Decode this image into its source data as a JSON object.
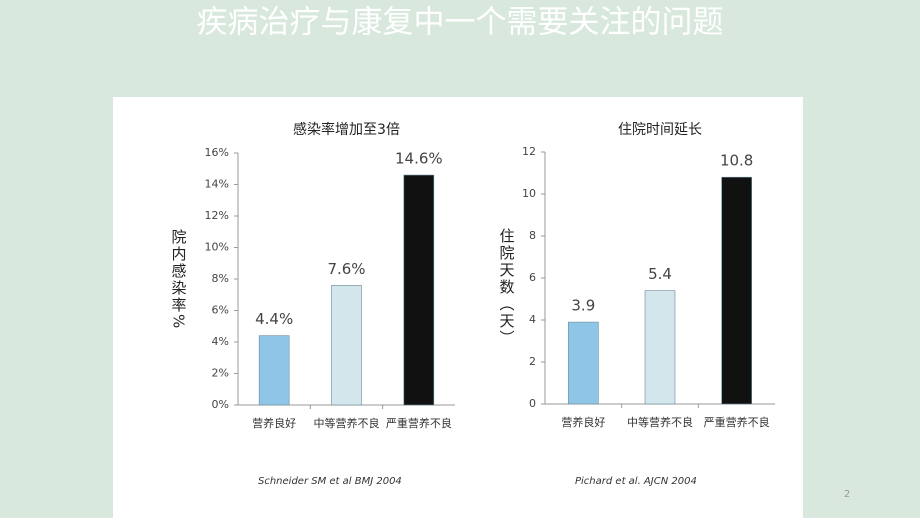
{
  "slide_title": "疾病治疗与康复中一个需要关注的问题",
  "page_number": "2",
  "chart_data": [
    {
      "type": "bar",
      "title": "感染率增加至3倍",
      "y_label": "院内感染率%",
      "categories": [
        "营养良好",
        "中等营养不良",
        "严重营养不良"
      ],
      "values": [
        4.4,
        7.6,
        14.6
      ],
      "value_labels": [
        "4.4%",
        "7.6%",
        "14.6%"
      ],
      "colors": [
        "#8fc6e8",
        "#d3e6ec",
        "#111111"
      ],
      "ylim": [
        0,
        16
      ],
      "yticks": [
        {
          "value": 0,
          "label": "0%"
        },
        {
          "value": 2,
          "label": "2%"
        },
        {
          "value": 4,
          "label": "4%"
        },
        {
          "value": 6,
          "label": "6%"
        },
        {
          "value": 8,
          "label": "8%"
        },
        {
          "value": 10,
          "label": "10%"
        },
        {
          "value": 12,
          "label": "12%"
        },
        {
          "value": 14,
          "label": "14%"
        },
        {
          "value": 16,
          "label": "16%"
        }
      ],
      "source": "Schneider SM et al BMJ 2004"
    },
    {
      "type": "bar",
      "title": "住院时间延长",
      "y_label": "住院天数（天）",
      "categories": [
        "营养良好",
        "中等营养不良",
        "严重营养不良"
      ],
      "values": [
        3.9,
        5.4,
        10.8
      ],
      "colors": [
        "#8fc6e8",
        "#d3e6ec",
        "#111111"
      ],
      "ylim": [
        0,
        12
      ],
      "yticks": [
        0,
        2,
        4,
        6,
        8,
        10,
        12
      ],
      "source": "Pichard et al.  AJCN 2004"
    }
  ]
}
